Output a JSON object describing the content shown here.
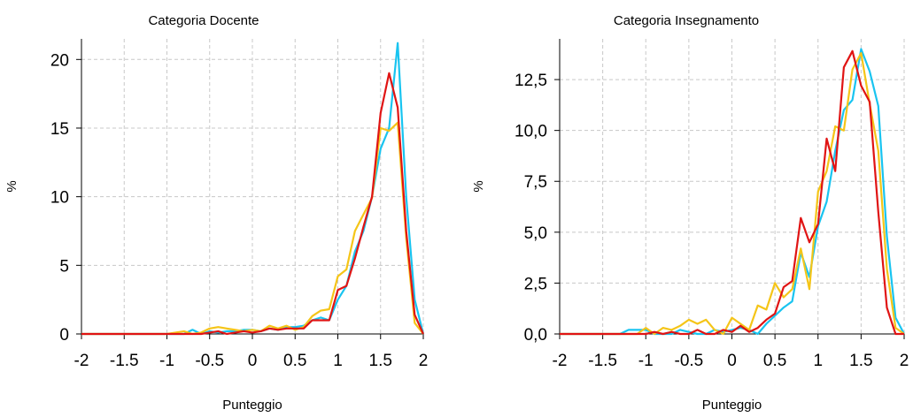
{
  "chart_data": [
    {
      "type": "line",
      "title": "Categoria Docente",
      "xlabel": "Punteggio",
      "ylabel": "%",
      "xlim": [
        -2,
        2
      ],
      "ylim": [
        0,
        21.5
      ],
      "xticks": [
        -2,
        -1.5,
        -1,
        -0.5,
        0,
        0.5,
        1,
        1.5,
        2
      ],
      "xtick_labels": [
        "-2",
        "-1.5",
        "-1",
        "-0.5",
        "0",
        "0.5",
        "1",
        "1.5",
        "2"
      ],
      "yticks": [
        0,
        5,
        10,
        15,
        20
      ],
      "ytick_labels": [
        "0",
        "5",
        "10",
        "15",
        "20"
      ],
      "grid": true,
      "x": [
        -2,
        -1.9,
        -1.8,
        -1.7,
        -1.6,
        -1.5,
        -1.4,
        -1.3,
        -1.2,
        -1.1,
        -1.0,
        -0.9,
        -0.8,
        -0.7,
        -0.6,
        -0.5,
        -0.4,
        -0.3,
        -0.2,
        -0.1,
        0.0,
        0.1,
        0.2,
        0.3,
        0.4,
        0.5,
        0.6,
        0.7,
        0.8,
        0.9,
        1.0,
        1.1,
        1.2,
        1.3,
        1.4,
        1.5,
        1.6,
        1.7,
        1.8,
        1.9,
        2.0
      ],
      "series": [
        {
          "color": "#19c4f0",
          "values": [
            0,
            0,
            0,
            0,
            0,
            0,
            0,
            0,
            0,
            0,
            0,
            0,
            0,
            0.3,
            0,
            0.2,
            0.1,
            0.2,
            0.2,
            0.3,
            0.3,
            0.2,
            0.4,
            0.3,
            0.5,
            0.5,
            0.6,
            1.0,
            1.2,
            1.0,
            2.5,
            3.5,
            6.0,
            7.5,
            10.0,
            13.5,
            15.0,
            21.2,
            10.0,
            2.5,
            0
          ]
        },
        {
          "color": "#f5c518",
          "values": [
            0,
            0,
            0,
            0,
            0,
            0,
            0,
            0,
            0,
            0,
            0,
            0.1,
            0.2,
            0,
            0.1,
            0.4,
            0.5,
            0.4,
            0.3,
            0.2,
            0.3,
            0.2,
            0.6,
            0.4,
            0.6,
            0.3,
            0.5,
            1.3,
            1.7,
            1.8,
            4.2,
            4.7,
            7.5,
            8.7,
            9.9,
            15.0,
            14.8,
            15.4,
            7.0,
            0.8,
            0
          ]
        },
        {
          "color": "#e01414",
          "values": [
            0,
            0,
            0,
            0,
            0,
            0,
            0,
            0,
            0,
            0,
            0,
            0,
            0,
            0,
            0,
            0.1,
            0.2,
            0,
            0.1,
            0.2,
            0.1,
            0.2,
            0.4,
            0.3,
            0.4,
            0.4,
            0.4,
            1.0,
            1.0,
            1.0,
            3.2,
            3.5,
            5.5,
            7.8,
            10.0,
            16.1,
            19.0,
            16.5,
            7.5,
            1.4,
            0
          ]
        }
      ]
    },
    {
      "type": "line",
      "title": "Categoria Insegnamento",
      "xlabel": "Punteggio",
      "ylabel": "%",
      "xlim": [
        -2,
        2
      ],
      "ylim": [
        0,
        14.5
      ],
      "xticks": [
        -2,
        -1.5,
        -1,
        -0.5,
        0,
        0.5,
        1,
        1.5,
        2
      ],
      "xtick_labels": [
        "-2",
        "-1.5",
        "-1",
        "-0.5",
        "0",
        "0.5",
        "1",
        "1.5",
        "2"
      ],
      "yticks": [
        0,
        2.5,
        5,
        7.5,
        10,
        12.5
      ],
      "ytick_labels": [
        "0,0",
        "2,5",
        "5,0",
        "7,5",
        "10,0",
        "12,5"
      ],
      "grid": true,
      "x": [
        -2,
        -1.9,
        -1.8,
        -1.7,
        -1.6,
        -1.5,
        -1.4,
        -1.3,
        -1.2,
        -1.1,
        -1.0,
        -0.9,
        -0.8,
        -0.7,
        -0.6,
        -0.5,
        -0.4,
        -0.3,
        -0.2,
        -0.1,
        0.0,
        0.1,
        0.2,
        0.3,
        0.4,
        0.5,
        0.6,
        0.7,
        0.8,
        0.9,
        1.0,
        1.1,
        1.2,
        1.3,
        1.4,
        1.5,
        1.6,
        1.7,
        1.8,
        1.9,
        2.0
      ],
      "series": [
        {
          "color": "#19c4f0",
          "values": [
            0,
            0,
            0,
            0,
            0,
            0,
            0,
            0,
            0.2,
            0.2,
            0.2,
            0,
            0,
            0,
            0.2,
            0.1,
            0,
            0,
            0.2,
            0.1,
            0.2,
            0.3,
            0.2,
            0,
            0.5,
            0.9,
            1.3,
            1.6,
            4.0,
            2.8,
            5.3,
            6.5,
            9.0,
            11.0,
            11.5,
            14.0,
            12.9,
            11.2,
            4.8,
            0.8,
            0
          ]
        },
        {
          "color": "#f5c518",
          "values": [
            0,
            0,
            0,
            0,
            0,
            0,
            0,
            0,
            0,
            0,
            0.3,
            0,
            0.3,
            0.2,
            0.4,
            0.7,
            0.5,
            0.7,
            0.2,
            0,
            0.8,
            0.5,
            0.2,
            1.4,
            1.2,
            2.5,
            1.8,
            2.2,
            4.2,
            2.2,
            7.0,
            8.0,
            10.2,
            10.0,
            13.0,
            13.8,
            11.3,
            9.0,
            3.2,
            0.3,
            0
          ]
        },
        {
          "color": "#e01414",
          "values": [
            0,
            0,
            0,
            0,
            0,
            0,
            0,
            0,
            0,
            0,
            0,
            0.1,
            0,
            0.1,
            0,
            0,
            0.2,
            0,
            0,
            0.2,
            0.1,
            0.4,
            0.1,
            0.3,
            0.7,
            1.0,
            2.3,
            2.6,
            5.7,
            4.5,
            5.4,
            9.6,
            8.0,
            13.1,
            13.9,
            12.2,
            11.4,
            6.0,
            1.3,
            0,
            0
          ]
        }
      ]
    }
  ]
}
